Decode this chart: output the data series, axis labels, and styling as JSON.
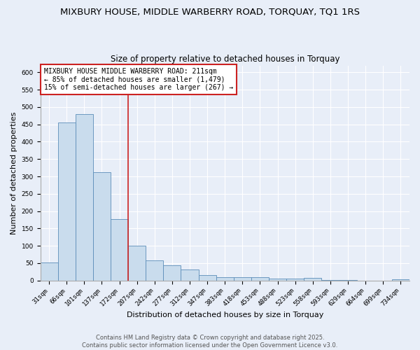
{
  "title": "MIXBURY HOUSE, MIDDLE WARBERRY ROAD, TORQUAY, TQ1 1RS",
  "subtitle": "Size of property relative to detached houses in Torquay",
  "xlabel": "Distribution of detached houses by size in Torquay",
  "ylabel": "Number of detached properties",
  "bar_labels": [
    "31sqm",
    "66sqm",
    "101sqm",
    "137sqm",
    "172sqm",
    "207sqm",
    "242sqm",
    "277sqm",
    "312sqm",
    "347sqm",
    "383sqm",
    "418sqm",
    "453sqm",
    "488sqm",
    "523sqm",
    "558sqm",
    "593sqm",
    "629sqm",
    "664sqm",
    "699sqm",
    "734sqm"
  ],
  "bar_values": [
    52,
    455,
    480,
    312,
    176,
    101,
    57,
    43,
    32,
    16,
    9,
    10,
    9,
    5,
    5,
    7,
    1,
    1,
    0,
    0,
    4
  ],
  "bar_color": "#c9dced",
  "bar_edge_color": "#5b8db8",
  "ylim": [
    0,
    620
  ],
  "yticks": [
    0,
    50,
    100,
    150,
    200,
    250,
    300,
    350,
    400,
    450,
    500,
    550,
    600
  ],
  "vline_color": "#cc2222",
  "annotation_text": "MIXBURY HOUSE MIDDLE WARBERRY ROAD: 211sqm\n← 85% of detached houses are smaller (1,479)\n15% of semi-detached houses are larger (267) →",
  "annotation_box_color": "#ffffff",
  "annotation_border_color": "#cc2222",
  "footnote1": "Contains HM Land Registry data © Crown copyright and database right 2025.",
  "footnote2": "Contains public sector information licensed under the Open Government Licence v3.0.",
  "bg_color": "#e8eef8",
  "grid_color": "#ffffff",
  "title_fontsize": 9.5,
  "subtitle_fontsize": 8.5,
  "axis_label_fontsize": 8,
  "tick_fontsize": 6.5,
  "footnote_fontsize": 6,
  "annotation_fontsize": 7
}
